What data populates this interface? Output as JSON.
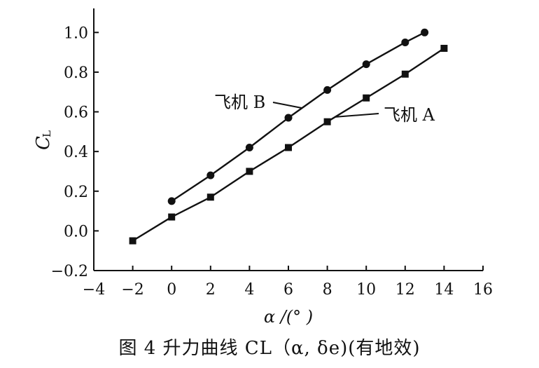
{
  "chart_data": {
    "type": "line",
    "xlabel": "α /(°  )",
    "ylabel": "C",
    "ylabel_sub": "L",
    "xlim": [
      -4,
      16
    ],
    "ylim": [
      -0.2,
      1.1
    ],
    "x_ticks": [
      -4,
      -2,
      0,
      2,
      4,
      6,
      8,
      10,
      12,
      14,
      16
    ],
    "x_tick_labels": [
      "−4",
      "−2",
      "0",
      "2",
      "4",
      "6",
      "8",
      "10",
      "12",
      "14",
      "16"
    ],
    "y_ticks": [
      -0.2,
      0.0,
      0.2,
      0.4,
      0.6,
      0.8,
      1.0
    ],
    "y_tick_labels": [
      "−0.2",
      "0.0",
      "0.2",
      "0.4",
      "0.6",
      "0.8",
      "1.0"
    ],
    "grid": false,
    "series": [
      {
        "name": "飞机 B",
        "marker": "circle",
        "x": [
          0,
          2,
          4,
          6,
          8,
          10,
          12,
          13
        ],
        "y": [
          0.15,
          0.28,
          0.42,
          0.57,
          0.71,
          0.84,
          0.95,
          1.0
        ]
      },
      {
        "name": "飞机 A",
        "marker": "square",
        "x": [
          -2,
          0,
          2,
          4,
          6,
          8,
          10,
          12,
          14
        ],
        "y": [
          -0.05,
          0.07,
          0.17,
          0.3,
          0.42,
          0.55,
          0.67,
          0.79,
          0.92
        ]
      }
    ],
    "annotations": [
      {
        "text": "飞机 B",
        "target_series": 0,
        "target_x": 6.7
      },
      {
        "text": "飞机 A",
        "target_series": 1,
        "target_x": 8.4
      }
    ]
  },
  "caption": {
    "text": "图 4    升力曲线 CL（α, δe)(有地效)"
  },
  "colors": {
    "ink": "#111111",
    "background": "#ffffff"
  }
}
